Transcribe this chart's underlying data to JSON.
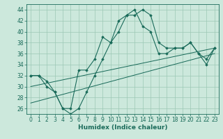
{
  "x_values": [
    0,
    1,
    2,
    3,
    4,
    5,
    6,
    7,
    8,
    9,
    10,
    11,
    12,
    13,
    14,
    15,
    16,
    17,
    18,
    19,
    20,
    21,
    22,
    23
  ],
  "line1_y": [
    32,
    32,
    31,
    29,
    26,
    26,
    33,
    33,
    35,
    39,
    38,
    40,
    43,
    43,
    44,
    43,
    38,
    37,
    37,
    37,
    38,
    36,
    34,
    37
  ],
  "line2_y": [
    32,
    32,
    30,
    29,
    26,
    25,
    26,
    29,
    32,
    35,
    38,
    42,
    43,
    44,
    41,
    40,
    36,
    36,
    37,
    37,
    38,
    36,
    35,
    37
  ],
  "trend1_x": [
    0,
    23
  ],
  "trend1_y": [
    30,
    37
  ],
  "trend2_x": [
    0,
    23
  ],
  "trend2_y": [
    27,
    36
  ],
  "ylim": [
    25,
    45
  ],
  "xlim": [
    -0.5,
    23.5
  ],
  "yticks": [
    26,
    28,
    30,
    32,
    34,
    36,
    38,
    40,
    42,
    44
  ],
  "xticks": [
    0,
    1,
    2,
    3,
    4,
    5,
    6,
    7,
    8,
    9,
    10,
    11,
    12,
    13,
    14,
    15,
    16,
    17,
    18,
    19,
    20,
    21,
    22,
    23
  ],
  "line_color": "#1a6b5a",
  "bg_color": "#cce8dc",
  "grid_color": "#9cc8b4",
  "xlabel": "Humidex (Indice chaleur)",
  "xlabel_fontsize": 6.5,
  "tick_fontsize": 5.5,
  "marker": "D",
  "marker_size": 1.8,
  "linewidth": 0.8
}
